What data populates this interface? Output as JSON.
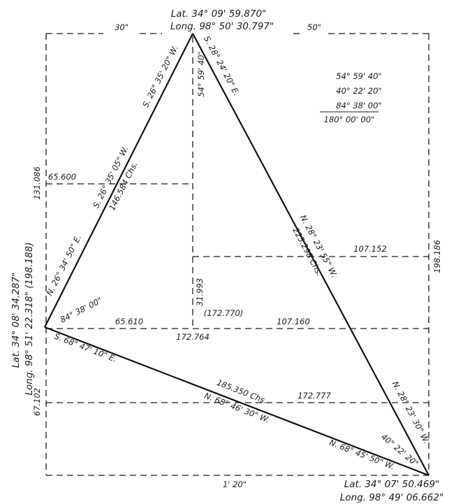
{
  "colors": {
    "ink": "#1a1a1a",
    "background": "#ffffff"
  },
  "vertices": {
    "top": {
      "lat": "Lat. 34° 09' 59.870\"",
      "long": "Long. 98° 50' 30.797\""
    },
    "left": {
      "lat": "Lat. 34° 08' 34.287\"",
      "long": "Long. 98° 51' 22.318\" (198.188)"
    },
    "bottom_right": {
      "lat": "Lat. 34° 07' 50.469\"",
      "long": "Long. 98° 49' 06.662\""
    }
  },
  "top_segments": {
    "left": "30\"",
    "right": "50\""
  },
  "bottom_segment": "1' 20\"",
  "angle_sum": {
    "lines": [
      "54° 59' 40\"",
      "40° 22' 20\"",
      "84° 38' 00\""
    ],
    "total": "180° 00' 00\""
  },
  "edges": {
    "top_left": {
      "outer": "S. 26° 35' 20\" W.",
      "inner": "S. 26° 35' 05\" W.",
      "chains": "146.584 Chs.",
      "reverse": "N. 26° 34' 50\" E."
    },
    "top_right": {
      "outer": "S. 28° 24' 20\" E.",
      "inner": "N. 28° 23' 55\" W.",
      "chains": "225.298 Chs.",
      "reverse": "N. 28° 23' 30\" W."
    },
    "bottom": {
      "outer": "S. 68° 47' 10\" E.",
      "chains": "185.350 Chs.",
      "inner": "N. 68° 46' 30\" W.",
      "reverse": "N. 68° 45' 50\" W."
    }
  },
  "angles": {
    "top": "54° 59' 40\"",
    "left": "84° 38' 00\"",
    "bottom_right": "40° 22' 20\""
  },
  "dimensions": {
    "left_upper": "131.086",
    "left_lower": "67.102",
    "right_side": "198.186",
    "upper_left_horizontal": "65.600",
    "mid_left_horizontal": "65.610",
    "mid_right_horizontal": "107.160",
    "upper_right_horizontal": "107.152",
    "center_vertical": "31.993",
    "center_paren": "(172.770)",
    "center_below": "172.764",
    "lower_horizontal": "172.777"
  }
}
